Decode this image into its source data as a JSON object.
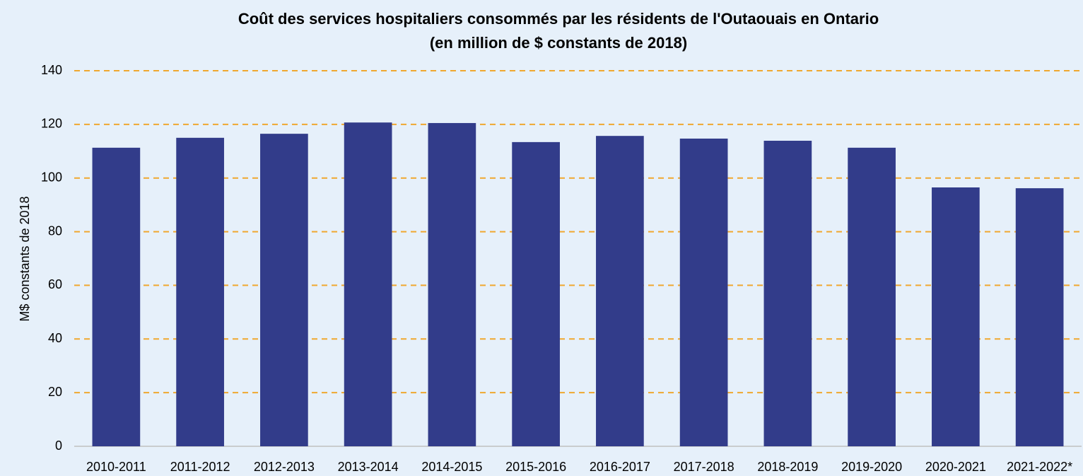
{
  "chart_data": {
    "type": "bar",
    "title": "Coût des services hospitaliers consommés par les résidents de l'Outaouais en Ontario",
    "subtitle": "(en million de $ constants de 2018)",
    "y_label": "M$ constants de 2018",
    "categories": [
      "2010-2011",
      "2011-2012",
      "2012-2013",
      "2013-2014",
      "2014-2015",
      "2015-2016",
      "2016-2017",
      "2017-2018",
      "2018-2019",
      "2019-2020",
      "2020-2021",
      "2021-2022*"
    ],
    "values": [
      111.3,
      115,
      116.5,
      120.7,
      120.5,
      113.4,
      115.7,
      114.7,
      113.9,
      111.3,
      96.5,
      96.2
    ],
    "color": "#323c8a",
    "ylim": [
      0,
      140
    ],
    "yticks": [
      0,
      20,
      40,
      60,
      80,
      100,
      120,
      140
    ],
    "grid": true,
    "grid_color": "#f0a830"
  }
}
